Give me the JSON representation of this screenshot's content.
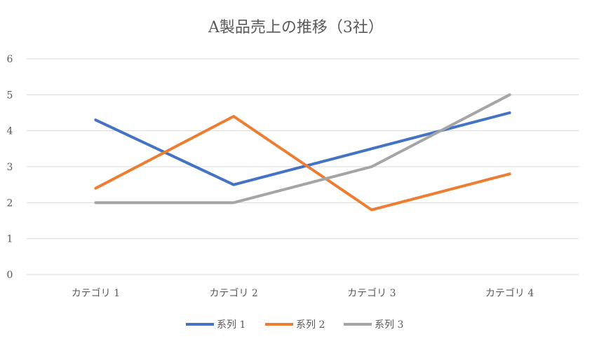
{
  "chart_data": {
    "type": "line",
    "title": "A製品売上の推移（3社）",
    "xlabel": "",
    "ylabel": "",
    "categories": [
      "カテゴリ 1",
      "カテゴリ 2",
      "カテゴリ 3",
      "カテゴリ 4"
    ],
    "ylim": [
      0,
      6
    ],
    "yticks": [
      "0",
      "1",
      "2",
      "3",
      "4",
      "5",
      "6"
    ],
    "grid": true,
    "legend": "bottom",
    "series": [
      {
        "name": "系列 1",
        "color": "#4472C4",
        "values": [
          4.3,
          2.5,
          3.5,
          4.5
        ]
      },
      {
        "name": "系列 2",
        "color": "#ED7D31",
        "values": [
          2.4,
          4.4,
          1.8,
          2.8
        ]
      },
      {
        "name": "系列 3",
        "color": "#A5A5A5",
        "values": [
          2,
          2,
          3,
          5
        ]
      }
    ]
  }
}
